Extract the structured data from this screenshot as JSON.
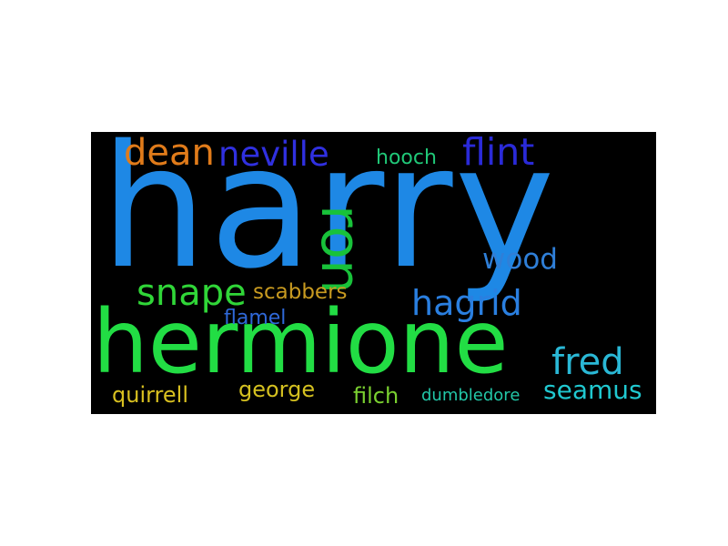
{
  "word_cloud": {
    "background": "#000000",
    "words": {
      "harry": {
        "text": "harry",
        "color": "#1e88e5"
      },
      "hermione": {
        "text": "hermione",
        "color": "#22dd44"
      },
      "dean": {
        "text": "dean",
        "color": "#e07b1a"
      },
      "neville": {
        "text": "neville",
        "color": "#3030e0"
      },
      "hooch": {
        "text": "hooch",
        "color": "#20c878"
      },
      "flint": {
        "text": "flint",
        "color": "#2a2ad8"
      },
      "ron": {
        "text": "ron",
        "color": "#18c23a"
      },
      "wood": {
        "text": "wood",
        "color": "#2f7fd8"
      },
      "snape": {
        "text": "snape",
        "color": "#30d638"
      },
      "scabbers": {
        "text": "scabbers",
        "color": "#c89a20"
      },
      "hagrid": {
        "text": "hagrid",
        "color": "#2a7fe0"
      },
      "flamel": {
        "text": "flamel",
        "color": "#2f68d8"
      },
      "fred": {
        "text": "fred",
        "color": "#2ab8d6"
      },
      "quirrell": {
        "text": "quirrell",
        "color": "#d8c020"
      },
      "george": {
        "text": "george",
        "color": "#d4c020"
      },
      "filch": {
        "text": "filch",
        "color": "#7ad030"
      },
      "dumbledore": {
        "text": "dumbledore",
        "color": "#22c7a8"
      },
      "seamus": {
        "text": "seamus",
        "color": "#20c8d0"
      }
    }
  }
}
